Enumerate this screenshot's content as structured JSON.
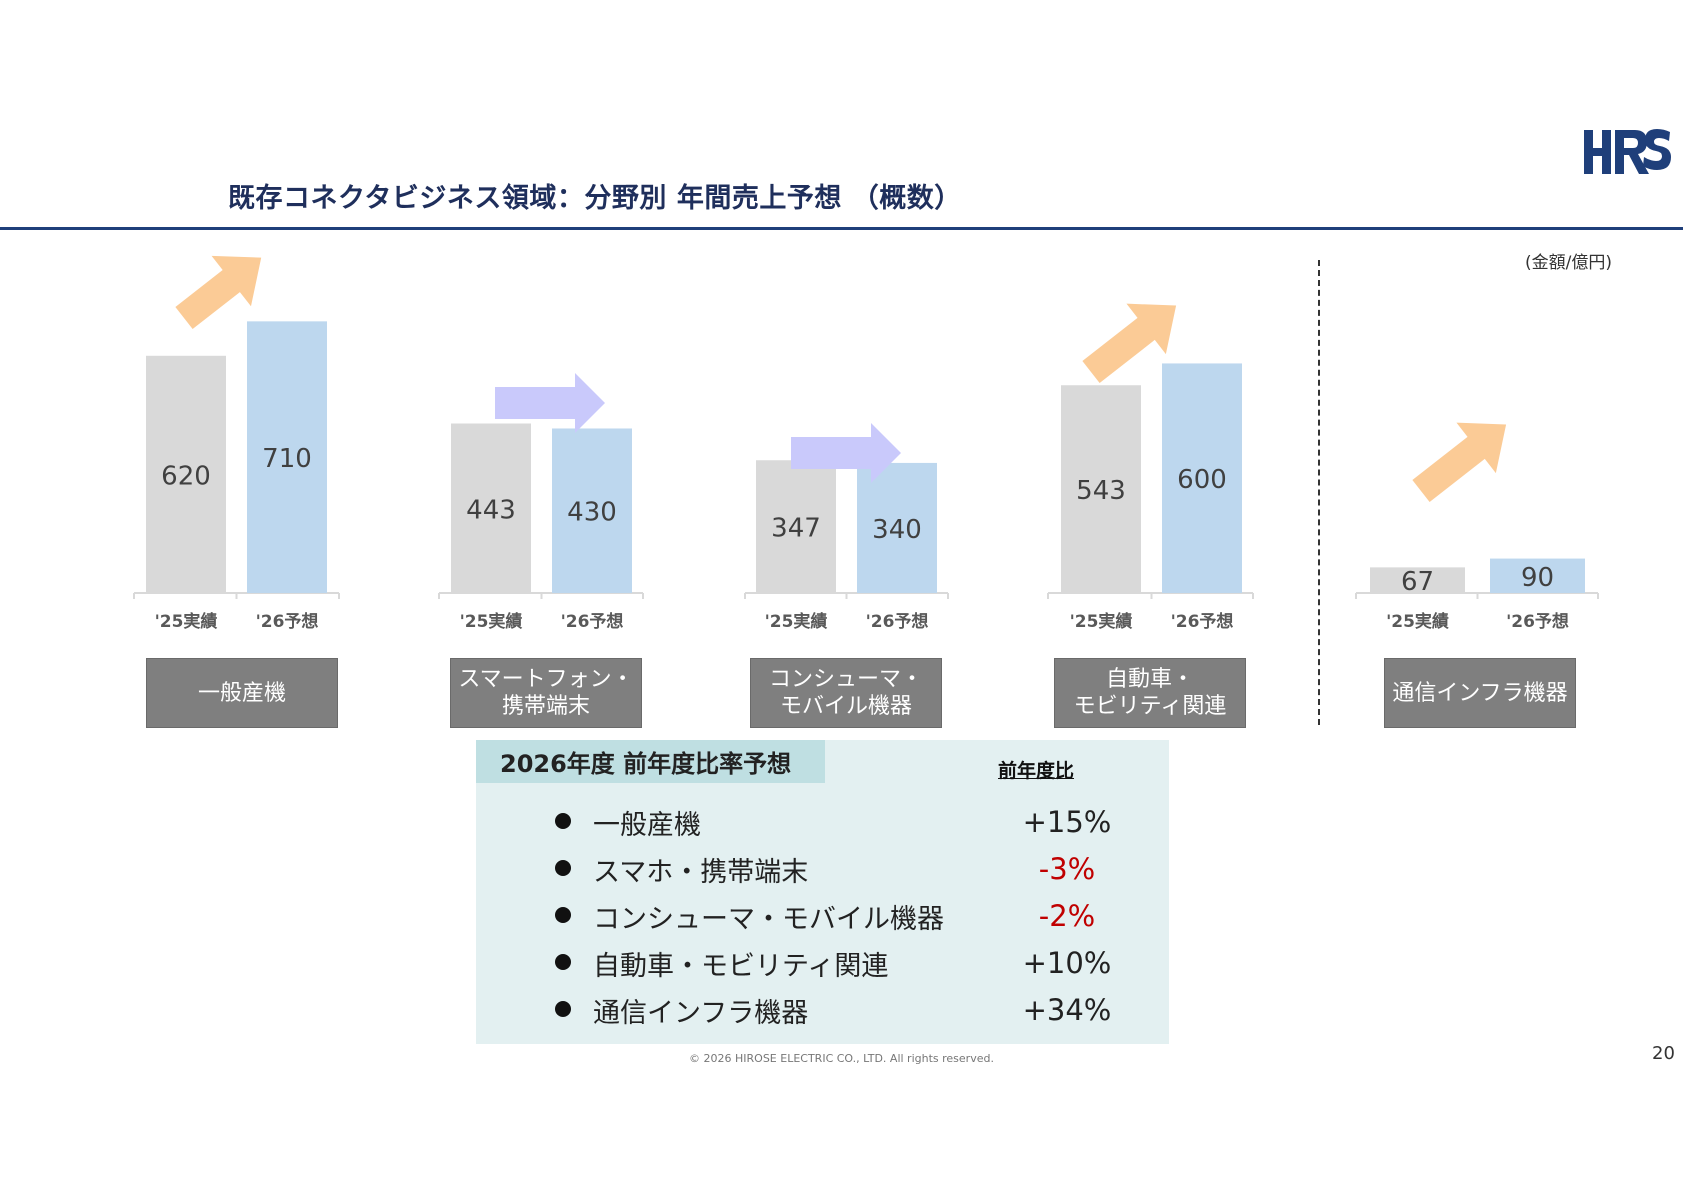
{
  "title": "既存コネクタビジネス領域：分野別 年間売上予想 （概数）",
  "unit_note": "(金額/億円)",
  "brand": {
    "logo_text": "HRS",
    "color": "#1f3f7a"
  },
  "colors": {
    "actual_bar": "#d9d9d9",
    "forecast_bar": "#bdd7ee",
    "up_arrow": "#fbcb96",
    "flat_arrow": "#c9c9fb",
    "negative": "#c00000",
    "category_box": "#7f7f7f"
  },
  "chart_data": {
    "type": "bar",
    "unit": "億円",
    "tick_labels": [
      "'25実績",
      "'26予想"
    ],
    "groups": [
      {
        "category": "一般産機",
        "values": [
          620,
          710
        ],
        "trend": "up"
      },
      {
        "category": "スマートフォン・\n携帯端末",
        "values": [
          443,
          430
        ],
        "trend": "flat"
      },
      {
        "category": "コンシューマ・\nモバイル機器",
        "values": [
          347,
          340
        ],
        "trend": "flat"
      },
      {
        "category": "自動車・\nモビリティ関連",
        "values": [
          543,
          600
        ],
        "trend": "up"
      },
      {
        "category": "通信インフラ機器",
        "values": [
          67,
          90
        ],
        "trend": "up"
      }
    ]
  },
  "panel": {
    "heading": "2026年度 前年度比率予想",
    "column_header": "前年度比",
    "rows": [
      {
        "label": "一般産機",
        "value": "+15%",
        "negative": false
      },
      {
        "label": "スマホ・携帯端末",
        "value": "-3%",
        "negative": true
      },
      {
        "label": "コンシューマ・モバイル機器",
        "value": "-2%",
        "negative": true
      },
      {
        "label": "自動車・モビリティ関連",
        "value": "+10%",
        "negative": false
      },
      {
        "label": "通信インフラ機器",
        "value": "+34%",
        "negative": false
      }
    ]
  },
  "footer": "© 2026 HIROSE ELECTRIC CO., LTD. All rights reserved.",
  "page_number": "20"
}
